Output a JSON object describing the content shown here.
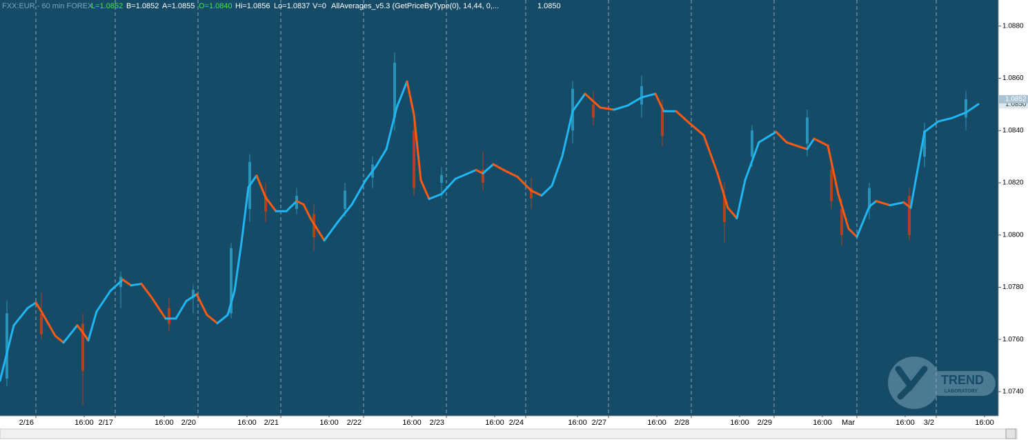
{
  "chart_data": {
    "type": "candlestick",
    "header": {
      "symbol": "FXX:EUR - 60 min  FOREX",
      "last": "L=1.0852",
      "bid": "B=1.0852",
      "ask": "A=1.0855",
      "open": "O=1.0840",
      "high": "Hi=1.0856",
      "low": "Lo=1.0837",
      "volume": "V=0",
      "indicator": "AllAverages_v5.3 (GetPriceByType(0), 14,44,  0,...",
      "indicator_value": "1.0850"
    },
    "price_tags": [
      {
        "value": 1.085,
        "label": "1.0850"
      },
      {
        "value": 1.0852,
        "label": "1.0852"
      }
    ],
    "watermark": {
      "title": "TREND",
      "subtitle": "LABORATORY"
    },
    "xlim": [
      0,
      289.4
    ],
    "ylim": [
      1.0731,
      1.089
    ],
    "yticks": [
      {
        "value": 1.088,
        "label": "1.0880"
      },
      {
        "value": 1.086,
        "label": "1.0860"
      },
      {
        "value": 1.084,
        "label": "1.0840"
      },
      {
        "value": 1.082,
        "label": "1.0820"
      },
      {
        "value": 1.08,
        "label": "1.0800"
      },
      {
        "value": 1.078,
        "label": "1.0780"
      },
      {
        "value": 1.076,
        "label": "1.0760"
      },
      {
        "value": 1.074,
        "label": "1.0740"
      }
    ],
    "xticks": [
      {
        "value": 10.4,
        "label": "2/16"
      },
      {
        "value": 33.4,
        "label": "2/17"
      },
      {
        "value": 57.4,
        "label": "2/20"
      },
      {
        "value": 81.4,
        "label": "2/21"
      },
      {
        "value": 105.4,
        "label": "2/22"
      },
      {
        "value": 129.4,
        "label": "2/23"
      },
      {
        "value": 152.4,
        "label": "2/24"
      },
      {
        "value": 176.4,
        "label": "2/27"
      },
      {
        "value": 200.4,
        "label": "2/28"
      },
      {
        "value": 224.4,
        "label": "2/29"
      },
      {
        "value": 248.4,
        "label": "Mar"
      },
      {
        "value": 271.4,
        "label": "3/2"
      }
    ],
    "xticks_hours": [
      {
        "value": 24.4,
        "label": "16:00"
      },
      {
        "value": 47.6,
        "label": "16:00"
      },
      {
        "value": 71.6,
        "label": "16:00"
      },
      {
        "value": 95.4,
        "label": "16:00"
      },
      {
        "value": 119.4,
        "label": "16:00"
      },
      {
        "value": 143.4,
        "label": "16:00"
      },
      {
        "value": 167.4,
        "label": "16:00"
      },
      {
        "value": 190.4,
        "label": "16:00"
      },
      {
        "value": 214.4,
        "label": "16:00"
      },
      {
        "value": 238.4,
        "label": "16:00"
      },
      {
        "value": 262.4,
        "label": "16:00"
      },
      {
        "value": 285.4,
        "label": "16:00"
      }
    ],
    "grid": true,
    "background": "#164b67",
    "candles": {
      "up_color": "#2a93b8",
      "down_color": "#b5401f",
      "x": [
        2,
        12,
        24,
        35,
        49,
        56,
        67,
        72.4,
        77,
        86,
        91,
        100,
        108,
        114.4,
        120,
        128,
        140,
        154,
        166,
        172,
        186,
        192,
        210,
        218,
        234,
        241,
        244,
        252,
        263.6,
        268,
        280
      ],
      "open": [
        1.0745,
        1.077,
        1.0766,
        1.078,
        1.0772,
        1.0776,
        1.077,
        1.081,
        1.0815,
        1.081,
        1.0808,
        1.081,
        1.0822,
        1.0845,
        1.084,
        1.082,
        1.0825,
        1.0818,
        1.084,
        1.085,
        1.085,
        1.0848,
        1.0815,
        1.083,
        1.0835,
        1.0825,
        1.081,
        1.081,
        1.0815,
        1.083,
        1.0845
      ],
      "high": [
        1.0775,
        1.0778,
        1.077,
        1.0786,
        1.0776,
        1.0781,
        1.0797,
        1.0831,
        1.082,
        1.0818,
        1.0812,
        1.082,
        1.083,
        1.087,
        1.0845,
        1.0826,
        1.0832,
        1.0822,
        1.0859,
        1.0855,
        1.0861,
        1.0852,
        1.082,
        1.0842,
        1.0848,
        1.083,
        1.0814,
        1.082,
        1.0818,
        1.0843,
        1.0855
      ],
      "low": [
        1.0742,
        1.076,
        1.0735,
        1.0772,
        1.0763,
        1.077,
        1.0768,
        1.0805,
        1.0805,
        1.0808,
        1.0794,
        1.0807,
        1.0818,
        1.084,
        1.0815,
        1.0814,
        1.0817,
        1.081,
        1.0835,
        1.0842,
        1.0845,
        1.0834,
        1.0797,
        1.0826,
        1.083,
        1.081,
        1.0796,
        1.0806,
        1.0798,
        1.0826,
        1.084
      ],
      "close": [
        1.077,
        1.0762,
        1.0748,
        1.0784,
        1.0766,
        1.0779,
        1.0795,
        1.0828,
        1.0809,
        1.0815,
        1.0799,
        1.0817,
        1.0827,
        1.0866,
        1.0818,
        1.0823,
        1.082,
        1.0814,
        1.0856,
        1.0845,
        1.0857,
        1.0838,
        1.0805,
        1.084,
        1.0845,
        1.0813,
        1.08,
        1.0818,
        1.08,
        1.084,
        1.0852
      ]
    },
    "average": {
      "rising_color": "#1fb6f2",
      "falling_color": "#ff5a12",
      "x": [
        0,
        4,
        8,
        10.4,
        12,
        16,
        18.4,
        20,
        22.4,
        24,
        25.6,
        28,
        32,
        35.6,
        38,
        41,
        44,
        48,
        51,
        54,
        57,
        60,
        63,
        66,
        68,
        70,
        72,
        74.4,
        77,
        80,
        83,
        86,
        88,
        90,
        94,
        98,
        102,
        106,
        109,
        112,
        115,
        118,
        120,
        122,
        124.4,
        128,
        132,
        138,
        140,
        143,
        146,
        150,
        154,
        157,
        160,
        163,
        166,
        169.6,
        174,
        178,
        182,
        186,
        190,
        192.4,
        196,
        200,
        204,
        208,
        211,
        213.6,
        216,
        220,
        225,
        228,
        232,
        234,
        236,
        240,
        243,
        246,
        248.4,
        252,
        254,
        258,
        262,
        264,
        268,
        272,
        276,
        280,
        283.6
      ],
      "values": [
        1.07442,
        1.07654,
        1.0772,
        1.07741,
        1.07707,
        1.07614,
        1.07588,
        1.07614,
        1.07654,
        1.07627,
        1.07596,
        1.07707,
        1.07786,
        1.07829,
        1.07807,
        1.07813,
        1.0776,
        1.0768,
        1.0768,
        1.07747,
        1.07773,
        1.07694,
        1.07662,
        1.07694,
        1.07786,
        1.07971,
        1.08183,
        1.08228,
        1.08144,
        1.08091,
        1.08091,
        1.0813,
        1.08117,
        1.08064,
        1.07979,
        1.08051,
        1.08117,
        1.0821,
        1.08263,
        1.08329,
        1.08488,
        1.08588,
        1.08461,
        1.0821,
        1.08138,
        1.08157,
        1.08215,
        1.08249,
        1.08236,
        1.08271,
        1.08249,
        1.08223,
        1.0817,
        1.08151,
        1.08189,
        1.08302,
        1.08474,
        1.08541,
        1.08488,
        1.0848,
        1.08496,
        1.08527,
        1.08541,
        1.08474,
        1.08474,
        1.08427,
        1.08382,
        1.08236,
        1.08104,
        1.08064,
        1.0821,
        1.08355,
        1.08395,
        1.08355,
        1.08337,
        1.08329,
        1.08369,
        1.08342,
        1.08157,
        1.08024,
        1.07993,
        1.08109,
        1.0813,
        1.08114,
        1.08125,
        1.08104,
        1.08395,
        1.08435,
        1.08448,
        1.08469,
        1.08501
      ]
    }
  }
}
